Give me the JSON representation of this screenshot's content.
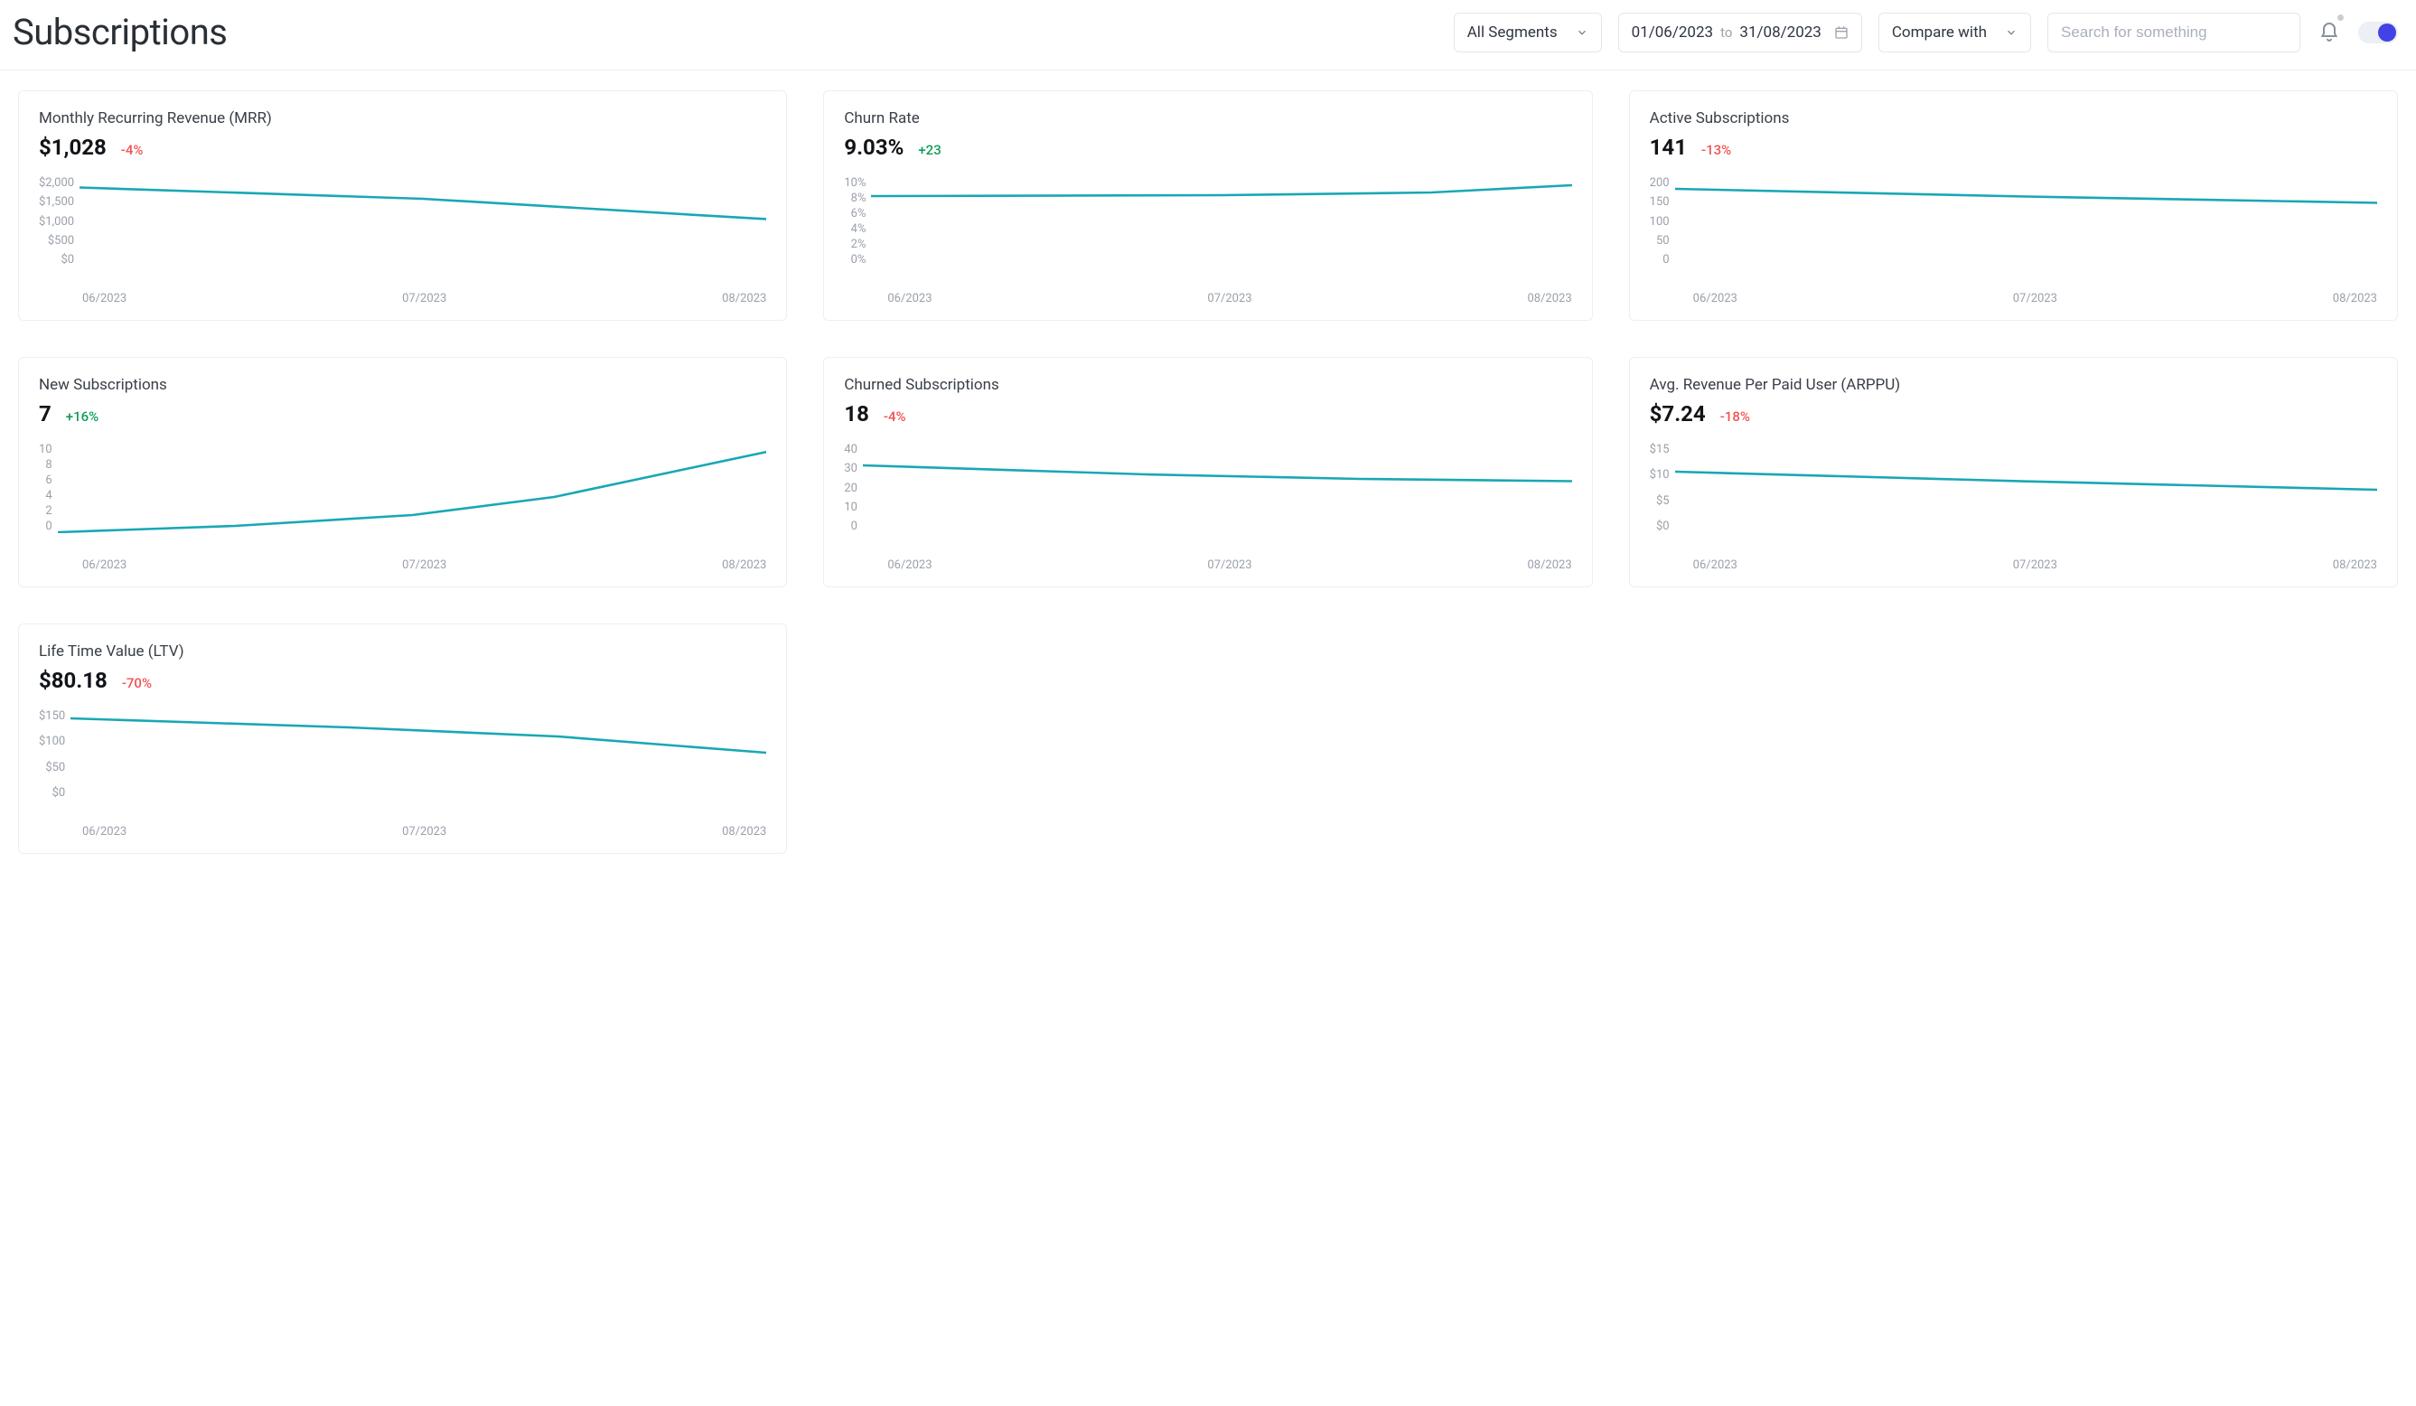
{
  "page": {
    "title": "Subscriptions"
  },
  "controls": {
    "segments": {
      "label": "All Segments"
    },
    "dateRange": {
      "from": "01/06/2023",
      "to_label": "to",
      "to": "31/08/2023"
    },
    "compare": {
      "label": "Compare with"
    },
    "search": {
      "placeholder": "Search for something"
    }
  },
  "style": {
    "line_color": "#19a7b5",
    "line_width": 2.6,
    "axis_text_color": "#9aa0aa",
    "card_border": "#eceff3",
    "delta_pos_color": "#0f9d58",
    "delta_neg_color": "#f05252",
    "background": "#ffffff",
    "x_labels": [
      "06/2023",
      "07/2023",
      "08/2023"
    ]
  },
  "cards": [
    {
      "id": "mrr",
      "title": "Monthly Recurring Revenue (MRR)",
      "value": "$1,028",
      "delta": "-4%",
      "delta_dir": "neg",
      "y_ticks": [
        "$2,000",
        "$1,500",
        "$1,000",
        "$500",
        "$0"
      ],
      "y_domain": [
        0,
        2000
      ],
      "series": [
        [
          0,
          1750
        ],
        [
          50,
          1500
        ],
        [
          100,
          1050
        ]
      ]
    },
    {
      "id": "churn-rate",
      "title": "Churn Rate",
      "value": "9.03%",
      "delta": "+23",
      "delta_dir": "pos",
      "y_ticks": [
        "10%",
        "8%",
        "6%",
        "4%",
        "2%",
        "0%"
      ],
      "y_domain": [
        0,
        10
      ],
      "series": [
        [
          0,
          7.8
        ],
        [
          50,
          7.9
        ],
        [
          80,
          8.2
        ],
        [
          100,
          9.0
        ]
      ]
    },
    {
      "id": "active-subs",
      "title": "Active Subscriptions",
      "value": "141",
      "delta": "-13%",
      "delta_dir": "neg",
      "y_ticks": [
        "200",
        "150",
        "100",
        "50",
        "0"
      ],
      "y_domain": [
        0,
        200
      ],
      "series": [
        [
          0,
          172
        ],
        [
          50,
          155
        ],
        [
          100,
          141
        ]
      ]
    },
    {
      "id": "new-subs",
      "title": "New Subscriptions",
      "value": "7",
      "delta": "+16%",
      "delta_dir": "pos",
      "y_ticks": [
        "10",
        "8",
        "6",
        "4",
        "2",
        "0"
      ],
      "y_domain": [
        0,
        10
      ],
      "series": [
        [
          0,
          0.1
        ],
        [
          25,
          0.8
        ],
        [
          50,
          2.0
        ],
        [
          70,
          4.0
        ],
        [
          85,
          6.5
        ],
        [
          100,
          9.0
        ]
      ]
    },
    {
      "id": "churned-subs",
      "title": "Churned Subscriptions",
      "value": "18",
      "delta": "-4%",
      "delta_dir": "neg",
      "y_ticks": [
        "40",
        "30",
        "20",
        "10",
        "0"
      ],
      "y_domain": [
        0,
        40
      ],
      "series": [
        [
          0,
          30
        ],
        [
          40,
          26
        ],
        [
          70,
          24
        ],
        [
          100,
          23
        ]
      ]
    },
    {
      "id": "arppu",
      "title": "Avg. Revenue Per Paid User (ARPPU)",
      "value": "$7.24",
      "delta": "-18%",
      "delta_dir": "neg",
      "y_ticks": [
        "$15",
        "$10",
        "$5",
        "$0"
      ],
      "y_domain": [
        0,
        15
      ],
      "series": [
        [
          0,
          10.2
        ],
        [
          50,
          8.6
        ],
        [
          100,
          7.2
        ]
      ]
    },
    {
      "id": "ltv",
      "title": "Life Time Value (LTV)",
      "value": "$80.18",
      "delta": "-70%",
      "delta_dir": "neg",
      "y_ticks": [
        "$150",
        "$100",
        "$50",
        "$0"
      ],
      "y_domain": [
        0,
        150
      ],
      "series": [
        [
          0,
          135
        ],
        [
          40,
          120
        ],
        [
          70,
          105
        ],
        [
          100,
          78
        ]
      ]
    }
  ]
}
